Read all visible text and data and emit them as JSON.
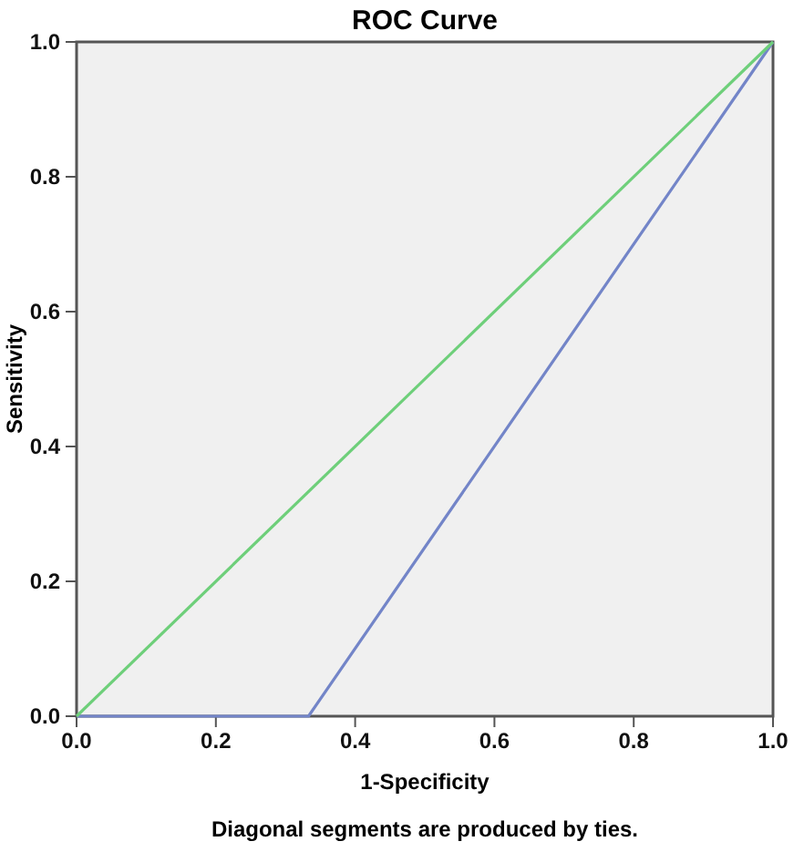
{
  "chart_data": {
    "type": "line",
    "title": "ROC Curve",
    "xlabel": "1-Specificity",
    "ylabel": "Sensitivity",
    "annotations": [
      "Diagonal segments are produced by ties."
    ],
    "xlim": [
      0,
      1
    ],
    "ylim": [
      0,
      1
    ],
    "xticks": [
      {
        "value": 0,
        "label": "0.0"
      },
      {
        "value": 0.2,
        "label": "0.2"
      },
      {
        "value": 0.4,
        "label": "0.4"
      },
      {
        "value": 0.6,
        "label": "0.6"
      },
      {
        "value": 0.8,
        "label": "0.8"
      },
      {
        "value": 1,
        "label": "1.0"
      }
    ],
    "yticks": [
      {
        "value": 0,
        "label": "0.0"
      },
      {
        "value": 0.2,
        "label": "0.2"
      },
      {
        "value": 0.4,
        "label": "0.4"
      },
      {
        "value": 0.6,
        "label": "0.6"
      },
      {
        "value": 0.8,
        "label": "0.8"
      },
      {
        "value": 1,
        "label": "1.0"
      }
    ],
    "grid": false,
    "marker": "none",
    "line_style": "solid",
    "series": [
      {
        "color": "#7385c8",
        "x": [
          0,
          0.333,
          1
        ],
        "values": [
          0,
          0,
          1
        ]
      },
      {
        "color": "#6ecf7a",
        "x": [
          0,
          1
        ],
        "values": [
          0,
          1
        ]
      }
    ]
  }
}
